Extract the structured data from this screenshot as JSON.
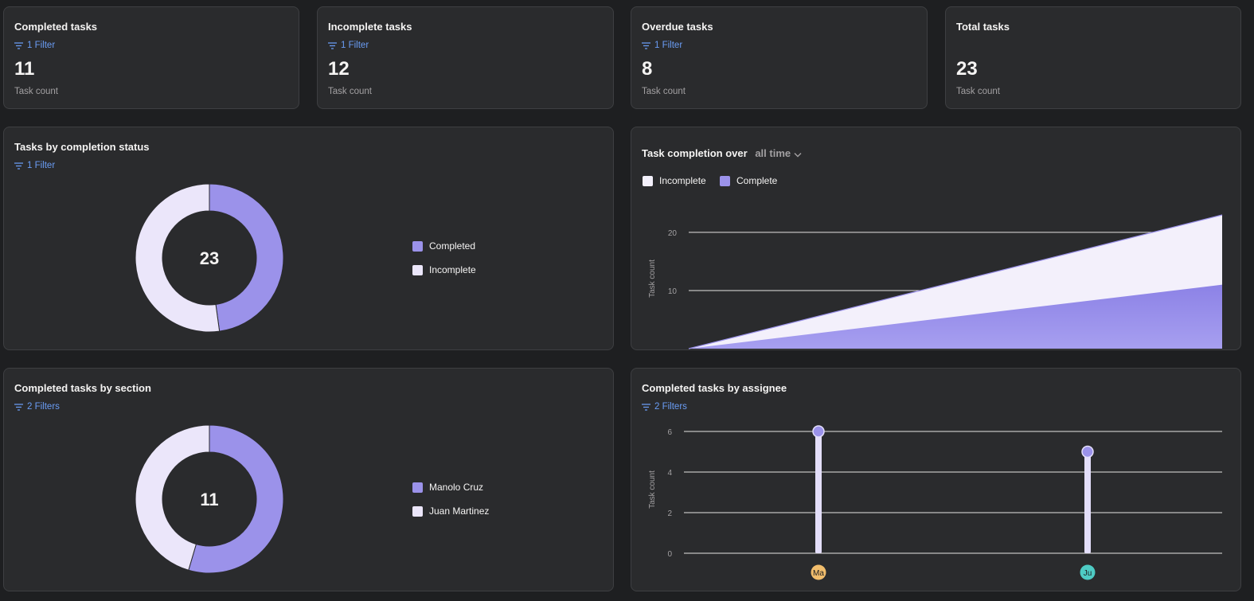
{
  "stats": [
    {
      "title": "Completed tasks",
      "filter": "1 Filter",
      "value": "11",
      "label": "Task count"
    },
    {
      "title": "Incomplete tasks",
      "filter": "1 Filter",
      "value": "12",
      "label": "Task count"
    },
    {
      "title": "Overdue tasks",
      "filter": "1 Filter",
      "value": "8",
      "label": "Task count"
    },
    {
      "title": "Total tasks",
      "filter": "",
      "value": "23",
      "label": "Task count"
    }
  ],
  "colors": {
    "complete": "#9b92ea",
    "incomplete": "#ebe6fa",
    "filter": "#6a9df5",
    "background": "#1e1f21",
    "card": "#2a2b2d"
  },
  "status_chart": {
    "title": "Tasks by completion status",
    "filter": "1 Filter",
    "center": "23",
    "legend": [
      "Completed",
      "Incomplete"
    ]
  },
  "completion_over_time": {
    "title_prefix": "Task completion over",
    "range": "all time",
    "legend": [
      "Incomplete",
      "Complete"
    ],
    "ylabel": "Task count"
  },
  "section_chart": {
    "title": "Completed tasks by section",
    "filter": "2 Filters",
    "center": "11",
    "legend": [
      "Manolo Cruz",
      "Juan Martinez"
    ]
  },
  "assignee_chart": {
    "title": "Completed tasks by assignee",
    "filter": "2 Filters",
    "ylabel": "Task count",
    "avatars": [
      {
        "initials": "Ma",
        "color": "#f1bd6c"
      },
      {
        "initials": "Ju",
        "color": "#4ecbc4"
      }
    ]
  },
  "chart_data": [
    {
      "type": "pie",
      "title": "Tasks by completion status",
      "categories": [
        "Completed",
        "Incomplete"
      ],
      "values": [
        11,
        12
      ],
      "total": 23
    },
    {
      "type": "area",
      "title": "Task completion over all time",
      "series": [
        {
          "name": "Incomplete",
          "values": [
            0,
            23
          ]
        },
        {
          "name": "Complete",
          "values": [
            0,
            11
          ]
        }
      ],
      "ylabel": "Task count",
      "yticks": [
        10,
        20
      ],
      "ylim": [
        0,
        23
      ]
    },
    {
      "type": "pie",
      "title": "Completed tasks by section",
      "categories": [
        "Manolo Cruz",
        "Juan Martinez"
      ],
      "values": [
        6,
        5
      ],
      "total": 11
    },
    {
      "type": "bar",
      "title": "Completed tasks by assignee",
      "categories": [
        "Ma",
        "Ju"
      ],
      "values": [
        6,
        5
      ],
      "ylabel": "Task count",
      "yticks": [
        0,
        2,
        4,
        6
      ],
      "ylim": [
        0,
        6
      ]
    }
  ]
}
